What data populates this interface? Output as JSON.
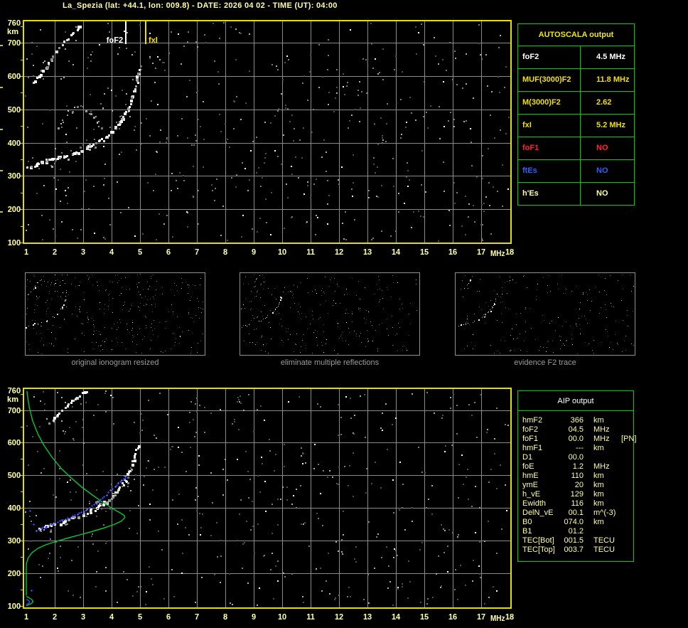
{
  "title": "La_Spezia (lat: +44.1, lon: 009.8) - DATE: 2026 04 02 - TIME (UT): 04:00",
  "colors": {
    "background": "#000000",
    "plot_border": "#e0e000",
    "axis_text": "#ffff9e",
    "grid": "#8a8a8a",
    "table_border": "#00d000",
    "autoscala_header": "#f0e800",
    "aip_text": "#ffffa0",
    "caption_gray": "#9c9c9c",
    "profile_green": "#00c832",
    "restored_blue": "#2a4cff",
    "red": "#ff2626",
    "blue": "#2a62ff",
    "white": "#ffffff"
  },
  "autoscala": {
    "header": "AUTOSCALA output",
    "rows": [
      {
        "label": "foF2",
        "value": "4.5 MHz",
        "color": "#ffffff"
      },
      {
        "label": "MUF(3000)F2",
        "value": "11.8 MHz",
        "color": "#f0e000"
      },
      {
        "label": "M(3000)F2",
        "value": "2.62",
        "color": "#f0e000"
      },
      {
        "label": "fxI",
        "value": "5.2 MHz",
        "color": "#f0e000"
      },
      {
        "label": "foF1",
        "value": "NO",
        "color": "#ff2626"
      },
      {
        "label": "ftEs",
        "value": "NO",
        "color": "#2a62ff"
      },
      {
        "label": "h'Es",
        "value": "NO",
        "color": "#ffff9e"
      }
    ]
  },
  "aip": {
    "header": "AIP output",
    "rows": [
      {
        "label": "hmF2",
        "value": "366",
        "unit": "km",
        "extra": ""
      },
      {
        "label": "foF2",
        "value": "04.5",
        "unit": "MHz",
        "extra": ""
      },
      {
        "label": "foF1",
        "value": "00.0",
        "unit": "MHz",
        "extra": "[PN]"
      },
      {
        "label": "hmF1",
        "value": "---",
        "unit": "km",
        "extra": ""
      },
      {
        "label": "D1",
        "value": "00.0",
        "unit": "",
        "extra": ""
      },
      {
        "label": "foE",
        "value": "1.2",
        "unit": "MHz",
        "extra": ""
      },
      {
        "label": "hmE",
        "value": "110",
        "unit": "km",
        "extra": ""
      },
      {
        "label": "ymE",
        "value": "20",
        "unit": "km",
        "extra": ""
      },
      {
        "label": "h_vE",
        "value": "129",
        "unit": "km",
        "extra": ""
      },
      {
        "label": "Ewidth",
        "value": "116",
        "unit": "km",
        "extra": ""
      },
      {
        "label": "DelN_vE",
        "value": "00.1",
        "unit": "m^(-3)",
        "extra": ""
      },
      {
        "label": "B0",
        "value": "074.0",
        "unit": "km",
        "extra": ""
      },
      {
        "label": "B1",
        "value": "01.2",
        "unit": "",
        "extra": ""
      },
      {
        "label": "TEC[Bot]",
        "value": "001.5",
        "unit": "TECU",
        "extra": ""
      },
      {
        "label": "TEC[Top]",
        "value": "003.7",
        "unit": "TECU",
        "extra": ""
      }
    ]
  },
  "thumbnails": [
    {
      "caption": "original ionogram resized",
      "noise": 330,
      "seed": 11,
      "streak": "full"
    },
    {
      "caption": "eliminate multiple reflections",
      "noise": 260,
      "seed": 22,
      "streak": "short"
    },
    {
      "caption": "evidence F2 trace",
      "noise": 200,
      "seed": 33,
      "streak": "partial"
    }
  ],
  "chart_data": [
    {
      "id": "top-ionogram",
      "type": "scatter",
      "title": "ionogram with scaled characteristics",
      "xlabel": "MHz",
      "ylabel": "km",
      "xlim": [
        1,
        18
      ],
      "ylim": [
        100,
        760
      ],
      "x_ticks": [
        1,
        2,
        3,
        4,
        5,
        6,
        7,
        8,
        9,
        10,
        11,
        12,
        13,
        14,
        15,
        16,
        17,
        18
      ],
      "y_ticks": [
        760,
        700,
        600,
        500,
        400,
        300,
        200,
        100
      ],
      "grid": true,
      "noise": 520,
      "seed": 7,
      "markers": [
        {
          "label": "foF2",
          "freq": 4.5,
          "color": "#ffffff",
          "side": "right"
        },
        {
          "label": "fxI",
          "freq": 5.2,
          "color": "#f0e000",
          "side": "left"
        }
      ],
      "series": [
        {
          "name": "f2-trace",
          "style": "blocks",
          "size": 3,
          "jitter": 2,
          "keep": 0.75,
          "palette": [
            "#ffffff",
            "#e0e0e0",
            "#9f9f9f"
          ],
          "points": [
            [
              1.05,
              326
            ],
            [
              1.2,
              332
            ],
            [
              1.4,
              340
            ],
            [
              1.7,
              348
            ],
            [
              2.0,
              354
            ],
            [
              2.3,
              361
            ],
            [
              2.6,
              369
            ],
            [
              2.9,
              379
            ],
            [
              3.2,
              391
            ],
            [
              3.5,
              404
            ],
            [
              3.75,
              418
            ],
            [
              3.95,
              432
            ],
            [
              4.15,
              449
            ],
            [
              4.3,
              466
            ],
            [
              4.45,
              487
            ],
            [
              4.6,
              512
            ],
            [
              4.72,
              541
            ],
            [
              4.82,
              572
            ],
            [
              4.9,
              600
            ],
            [
              4.95,
              622
            ]
          ]
        },
        {
          "name": "trace-fuzz",
          "style": "blocks",
          "size": 2,
          "jitter": 8,
          "keep": 0.3,
          "palette": [
            "#8a8a8a",
            "#6a6a6a",
            "#b0b0b0"
          ],
          "points": [
            [
              1.05,
              326
            ],
            [
              1.5,
              342
            ],
            [
              2.0,
              354
            ],
            [
              2.5,
              366
            ],
            [
              3.0,
              382
            ],
            [
              3.5,
              404
            ],
            [
              4.0,
              436
            ],
            [
              4.4,
              480
            ],
            [
              4.7,
              540
            ],
            [
              4.9,
              600
            ]
          ]
        },
        {
          "name": "second-order-arc",
          "style": "blocks",
          "size": 2,
          "jitter": 3,
          "keep": 0.45,
          "palette": [
            "#9a9a9a",
            "#777777",
            "#c0c0c0"
          ],
          "points": [
            [
              2.15,
              445
            ],
            [
              2.28,
              468
            ],
            [
              2.45,
              487
            ],
            [
              2.65,
              500
            ],
            [
              2.9,
              507
            ],
            [
              3.15,
              500
            ],
            [
              3.35,
              486
            ],
            [
              3.5,
              466
            ],
            [
              3.62,
              442
            ]
          ]
        },
        {
          "name": "oblique-streak",
          "style": "blocks",
          "size": 3,
          "jitter": 1.5,
          "keep": 0.6,
          "palette": [
            "#ffffff",
            "#d8d8d8",
            "#8f8f8f"
          ],
          "points": [
            [
              1.25,
              585
            ],
            [
              1.45,
              608
            ],
            [
              1.7,
              635
            ],
            [
              1.95,
              662
            ],
            [
              2.2,
              690
            ],
            [
              2.45,
              716
            ],
            [
              2.7,
              740
            ],
            [
              2.95,
              760
            ]
          ]
        }
      ]
    },
    {
      "id": "bottom-ionogram",
      "type": "scatter",
      "title": "restored trace and electron density profile",
      "xlabel": "MHz",
      "ylabel": "km",
      "xlim": [
        1,
        18
      ],
      "ylim": [
        100,
        760
      ],
      "x_ticks": [
        1,
        2,
        3,
        4,
        5,
        6,
        7,
        8,
        9,
        10,
        11,
        12,
        13,
        14,
        15,
        16,
        17,
        18
      ],
      "y_ticks": [
        760,
        700,
        600,
        500,
        400,
        300,
        200,
        100
      ],
      "grid": true,
      "noise": 480,
      "seed": 13,
      "markers": [],
      "series": [
        {
          "name": "f2-trace",
          "style": "blocks",
          "size": 3,
          "jitter": 2,
          "keep": 0.7,
          "palette": [
            "#ffffff",
            "#e0e0e0",
            "#9f9f9f"
          ],
          "points": [
            [
              1.3,
              333
            ],
            [
              1.5,
              340
            ],
            [
              1.75,
              348
            ],
            [
              2.0,
              354
            ],
            [
              2.3,
              361
            ],
            [
              2.6,
              369
            ],
            [
              2.9,
              379
            ],
            [
              3.2,
              391
            ],
            [
              3.5,
              404
            ],
            [
              3.75,
              418
            ],
            [
              3.95,
              432
            ],
            [
              4.15,
              449
            ],
            [
              4.3,
              466
            ],
            [
              4.45,
              487
            ],
            [
              4.6,
              512
            ],
            [
              4.72,
              541
            ],
            [
              4.82,
              572
            ],
            [
              4.9,
              598
            ]
          ]
        },
        {
          "name": "trace-fuzz",
          "style": "blocks",
          "size": 2,
          "jitter": 9,
          "keep": 0.35,
          "palette": [
            "#8a8a8a",
            "#6a6a6a",
            "#b0b0b0"
          ],
          "points": [
            [
              1.4,
              336
            ],
            [
              2.0,
              354
            ],
            [
              2.6,
              369
            ],
            [
              3.2,
              391
            ],
            [
              3.7,
              414
            ],
            [
              4.1,
              444
            ],
            [
              4.45,
              487
            ],
            [
              4.75,
              550
            ]
          ]
        },
        {
          "name": "oblique-streak",
          "style": "blocks",
          "size": 3,
          "jitter": 1.5,
          "keep": 0.6,
          "palette": [
            "#ffffff",
            "#d8d8d8",
            "#8f8f8f"
          ],
          "points": [
            [
              1.8,
              663
            ],
            [
              2.05,
              686
            ],
            [
              2.3,
              708
            ],
            [
              2.6,
              731
            ],
            [
              2.9,
              750
            ],
            [
              3.15,
              760
            ]
          ]
        },
        {
          "name": "density-profile-F",
          "style": "line",
          "color": "#00c832",
          "points": [
            [
              1.02,
              758
            ],
            [
              1.1,
              710
            ],
            [
              1.22,
              668
            ],
            [
              1.4,
              628
            ],
            [
              1.62,
              592
            ],
            [
              1.9,
              556
            ],
            [
              2.22,
              522
            ],
            [
              2.58,
              492
            ],
            [
              2.95,
              464
            ],
            [
              3.32,
              440
            ],
            [
              3.68,
              418
            ],
            [
              4.0,
              400
            ],
            [
              4.28,
              386
            ],
            [
              4.45,
              377
            ],
            [
              4.47,
              371
            ],
            [
              4.35,
              360
            ],
            [
              4.08,
              349
            ],
            [
              3.7,
              338
            ],
            [
              3.28,
              327
            ],
            [
              2.85,
              317
            ],
            [
              2.42,
              307
            ],
            [
              2.02,
              297
            ],
            [
              1.68,
              287
            ],
            [
              1.4,
              276
            ],
            [
              1.2,
              263
            ],
            [
              1.07,
              248
            ],
            [
              1.01,
              232
            ],
            [
              1.0,
              218
            ],
            [
              1.0,
              132
            ]
          ]
        },
        {
          "name": "density-profile-E",
          "style": "line",
          "color": "#00c832",
          "points": [
            [
              1.0,
              129
            ],
            [
              1.1,
              125
            ],
            [
              1.2,
              119
            ],
            [
              1.24,
              113
            ],
            [
              1.17,
              107
            ],
            [
              1.06,
              103
            ],
            [
              1.0,
              101
            ]
          ]
        },
        {
          "name": "e-layer-blue-arc",
          "style": "line",
          "color": "#2a4cff",
          "points": [
            [
              1.0,
              121
            ],
            [
              1.09,
              116
            ],
            [
              1.12,
              111
            ],
            [
              1.05,
              106
            ],
            [
              1.0,
              104
            ]
          ]
        },
        {
          "name": "restored-f2-trace",
          "style": "plus",
          "jitter": 1,
          "palette": [
            "#2a3cff",
            "#4a6aff"
          ],
          "points": [
            [
              1.35,
              331
            ],
            [
              1.5,
              337
            ],
            [
              1.65,
              342
            ],
            [
              1.8,
              347
            ],
            [
              1.95,
              352
            ],
            [
              2.1,
              357
            ],
            [
              2.25,
              362
            ],
            [
              2.4,
              367
            ],
            [
              2.55,
              372
            ],
            [
              2.7,
              378
            ],
            [
              2.85,
              384
            ],
            [
              3.0,
              391
            ],
            [
              3.15,
              398
            ],
            [
              3.3,
              406
            ],
            [
              3.45,
              415
            ],
            [
              3.6,
              425
            ],
            [
              3.75,
              436
            ],
            [
              3.9,
              447
            ],
            [
              4.05,
              459
            ],
            [
              4.2,
              471
            ],
            [
              4.32,
              481
            ],
            [
              4.42,
              490
            ],
            [
              4.5,
              499
            ]
          ]
        },
        {
          "name": "restored-isolated-points",
          "style": "plus",
          "interp": false,
          "jitter": 0,
          "palette": [
            "#2a3cff",
            "#4a6aff"
          ],
          "points": [
            [
              1.13,
              392
            ],
            [
              1.25,
              351
            ],
            [
              1.18,
              148
            ]
          ]
        }
      ]
    }
  ]
}
